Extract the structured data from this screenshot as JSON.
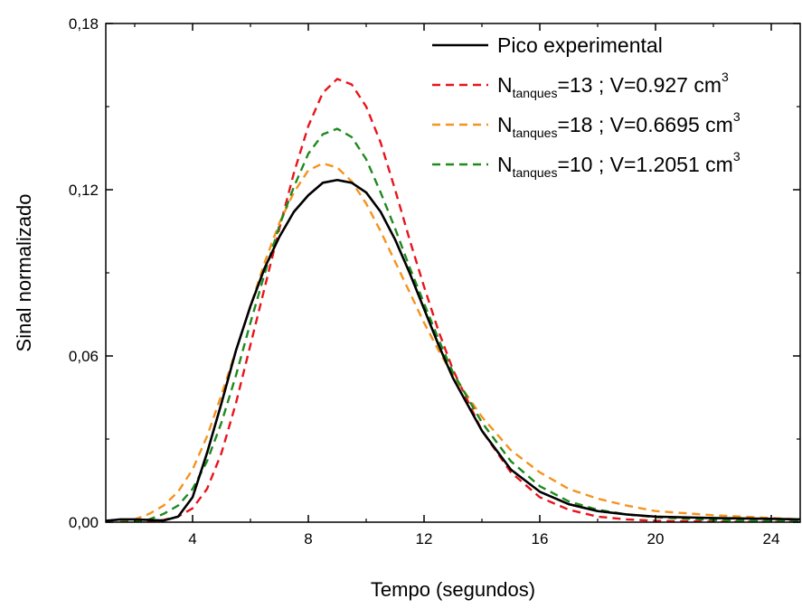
{
  "chart_data": {
    "type": "line",
    "title": "",
    "xlabel": "Tempo (segundos)",
    "ylabel": "Sinal normalizado",
    "xlim": [
      1,
      25
    ],
    "ylim": [
      0,
      0.18
    ],
    "x_ticks": [
      4,
      8,
      12,
      16,
      20,
      24
    ],
    "x_tick_labels": [
      "4",
      "8",
      "12",
      "16",
      "20",
      "24"
    ],
    "y_ticks": [
      0,
      0.06,
      0.12,
      0.18
    ],
    "y_tick_labels": [
      "0,00",
      "0,06",
      "0,12",
      "0,18"
    ],
    "grid": false,
    "legend_position": "top-right",
    "series": [
      {
        "name": "Pico experimental",
        "legend": {
          "main": "Pico experimental",
          "sub": "",
          "rest": "",
          "sup": ""
        },
        "color": "#000000",
        "dash": "solid",
        "x": [
          1,
          1.5,
          2,
          2.5,
          3,
          3.5,
          4,
          4.5,
          5,
          5.5,
          6,
          6.5,
          7,
          7.5,
          8,
          8.5,
          9,
          9.5,
          10,
          10.5,
          11,
          11.5,
          12,
          12.5,
          13,
          14,
          15,
          16,
          17,
          18,
          19,
          20,
          22,
          24,
          25
        ],
        "y": [
          0.0005,
          0.001,
          0.001,
          0.0008,
          0.0006,
          0.002,
          0.009,
          0.025,
          0.043,
          0.062,
          0.078,
          0.092,
          0.103,
          0.112,
          0.118,
          0.1225,
          0.1235,
          0.1225,
          0.119,
          0.112,
          0.102,
          0.09,
          0.077,
          0.064,
          0.052,
          0.033,
          0.019,
          0.011,
          0.0065,
          0.004,
          0.0028,
          0.002,
          0.0015,
          0.0012,
          0.001
        ]
      },
      {
        "name": "Ntanques=13 ; V=0.927 cm3",
        "legend": {
          "main": "N",
          "sub": "tanques",
          "rest": "=13 ; V=0.927 cm",
          "sup": "3"
        },
        "color": "#e8141c",
        "dash": "dashed",
        "x": [
          1.5,
          2,
          2.5,
          3,
          3.5,
          4,
          4.5,
          5,
          5.5,
          6,
          6.5,
          7,
          7.5,
          8,
          8.5,
          9,
          9.5,
          10,
          10.5,
          11,
          11.5,
          12,
          12.5,
          13,
          14,
          15,
          16,
          17,
          18,
          19,
          20,
          22,
          24,
          25
        ],
        "y": [
          0,
          0,
          0.0002,
          0.0008,
          0.002,
          0.005,
          0.012,
          0.025,
          0.043,
          0.064,
          0.085,
          0.106,
          0.126,
          0.143,
          0.155,
          0.16,
          0.158,
          0.15,
          0.137,
          0.12,
          0.102,
          0.085,
          0.069,
          0.055,
          0.033,
          0.018,
          0.009,
          0.0045,
          0.002,
          0.001,
          0.0005,
          0.0002,
          0.0001,
          0.0001
        ]
      },
      {
        "name": "Ntanques=18 ; V=0.6695 cm3",
        "legend": {
          "main": "N",
          "sub": "tanques",
          "rest": "=18 ; V=0.6695 cm",
          "sup": "3"
        },
        "color": "#f5931e",
        "dash": "dashed",
        "x": [
          1.5,
          2,
          2.5,
          3,
          3.5,
          4,
          4.5,
          5,
          5.5,
          6,
          6.5,
          7,
          7.5,
          8,
          8.5,
          9,
          9.5,
          10,
          10.5,
          11,
          11.5,
          12,
          12.5,
          13,
          14,
          15,
          16,
          17,
          18,
          19,
          20,
          22,
          24,
          25
        ],
        "y": [
          0.0003,
          0.001,
          0.003,
          0.006,
          0.011,
          0.019,
          0.031,
          0.046,
          0.062,
          0.078,
          0.094,
          0.108,
          0.119,
          0.127,
          0.1295,
          0.128,
          0.123,
          0.115,
          0.105,
          0.094,
          0.083,
          0.072,
          0.062,
          0.053,
          0.038,
          0.026,
          0.018,
          0.012,
          0.0085,
          0.006,
          0.004,
          0.0025,
          0.0015,
          0.001
        ]
      },
      {
        "name": "Ntanques=10 ; V=1.2051 cm3",
        "legend": {
          "main": "N",
          "sub": "tanques",
          "rest": "=10 ; V=1.2051 cm",
          "sup": "3"
        },
        "color": "#1f8a1f",
        "dash": "dashed",
        "x": [
          1.5,
          2,
          2.5,
          3,
          3.5,
          4,
          4.5,
          5,
          5.5,
          6,
          6.5,
          7,
          7.5,
          8,
          8.5,
          9,
          9.5,
          10,
          10.5,
          11,
          11.5,
          12,
          12.5,
          13,
          14,
          15,
          16,
          17,
          18,
          19,
          20,
          22,
          24,
          25
        ],
        "y": [
          0,
          0.0002,
          0.001,
          0.003,
          0.006,
          0.012,
          0.022,
          0.036,
          0.053,
          0.072,
          0.09,
          0.107,
          0.121,
          0.133,
          0.14,
          0.142,
          0.139,
          0.131,
          0.119,
          0.106,
          0.092,
          0.079,
          0.066,
          0.054,
          0.036,
          0.022,
          0.013,
          0.0075,
          0.0045,
          0.0028,
          0.0018,
          0.0008,
          0.0004,
          0.0003
        ]
      }
    ]
  }
}
